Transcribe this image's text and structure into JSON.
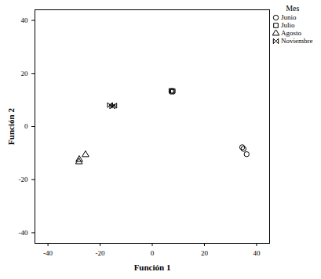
{
  "chart_data": {
    "type": "scatter",
    "x_label": "Función 1",
    "y_label": "Función 2",
    "legend_title": "Mes",
    "legend": "right",
    "grid": false,
    "xlim": [
      -45,
      45
    ],
    "ylim": [
      -44,
      44
    ],
    "xticks": [
      -40,
      -20,
      0,
      20,
      40
    ],
    "yticks": [
      -40,
      -20,
      0,
      20,
      40
    ],
    "series": [
      {
        "name": "Junio",
        "color": "#000000",
        "marker": "circle",
        "x": [
          34.5,
          35.0,
          36.2
        ],
        "values": [
          -7.8,
          -8.4,
          -10.4
        ]
      },
      {
        "name": "Julio",
        "color": "#000000",
        "marker": "square",
        "x": [
          7.3,
          7.6,
          7.9
        ],
        "values": [
          13.5,
          13.1,
          13.4
        ]
      },
      {
        "name": "Agosto",
        "color": "#000000",
        "marker": "triangle",
        "x": [
          -28.0,
          -28.1,
          -25.6
        ],
        "values": [
          -12.4,
          -13.3,
          -10.6
        ]
      },
      {
        "name": "Noviembre",
        "color": "#000000",
        "marker": "bowtie",
        "x": [
          -16.2,
          -15.3,
          -14.6
        ],
        "values": [
          8.1,
          7.6,
          7.9
        ]
      }
    ]
  }
}
